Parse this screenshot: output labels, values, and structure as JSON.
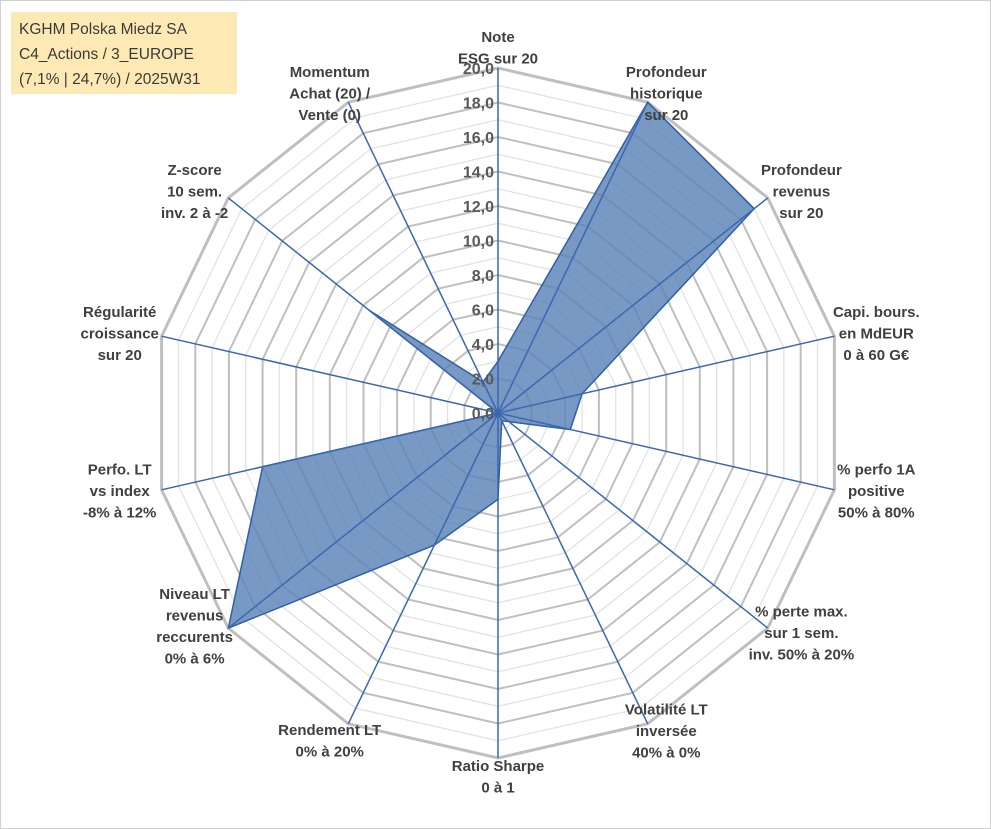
{
  "chart_data": {
    "type": "radar",
    "title_lines": [
      "KGHM Polska Miedz SA",
      "C4_Actions / 3_EUROPE",
      "(7,1% | 24,7%) / 2025W31"
    ],
    "axes": [
      {
        "lines": [
          "Note",
          "ESG sur 20"
        ]
      },
      {
        "lines": [
          "Profondeur",
          "historique",
          "sur 20"
        ]
      },
      {
        "lines": [
          "Profondeur",
          "revenus",
          "sur 20"
        ]
      },
      {
        "lines": [
          "Capi. bours.",
          "en MdEUR",
          "0 à 60 G€"
        ]
      },
      {
        "lines": [
          "% perfo 1A",
          "positive",
          "50% à 80%"
        ]
      },
      {
        "lines": [
          "% perte max.",
          "sur 1 sem.",
          "inv. 50% à 20%"
        ]
      },
      {
        "lines": [
          "Volatilité LT",
          "inversée",
          "40% à 0%"
        ]
      },
      {
        "lines": [
          "Ratio Sharpe",
          "0 à 1"
        ]
      },
      {
        "lines": [
          "Rendement LT",
          "0% à 20%"
        ]
      },
      {
        "lines": [
          "Niveau LT",
          "revenus",
          "reccurents",
          "0% à 6%"
        ]
      },
      {
        "lines": [
          "Perfo. LT",
          "vs index",
          "-8% à 12%"
        ]
      },
      {
        "lines": [
          "Régularité",
          "croissance",
          "sur 20"
        ]
      },
      {
        "lines": [
          "Z-score",
          "10 sem.",
          "inv. 2 à -2"
        ]
      },
      {
        "lines": [
          "Momentum",
          "Achat (20) /",
          "Vente (0)"
        ]
      }
    ],
    "values": [
      3.0,
      20.0,
      19.0,
      5.0,
      4.3,
      0.8,
      0.5,
      5.0,
      8.5,
      20.0,
      14.0,
      0.0,
      9.5,
      2.0
    ],
    "range": [
      0,
      20
    ],
    "ticks": [
      "0,0",
      "2,0",
      "4,0",
      "6,0",
      "8,0",
      "10,0",
      "12,0",
      "14,0",
      "16,0",
      "18,0",
      "20,0"
    ],
    "grid": true,
    "colors": {
      "fill": "#5b82b8",
      "line": "#2f5fa8",
      "spoke": "#3a67b0",
      "grid_major": "#bfbfbf",
      "grid_minor": "#e2e2e2",
      "title_bg": "#fde9b4"
    }
  }
}
